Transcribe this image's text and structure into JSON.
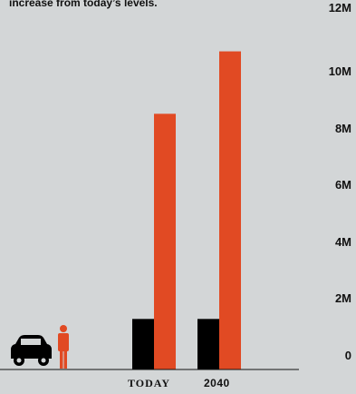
{
  "caption": "increase from today’s levels.",
  "colors": {
    "background": "#d3d6d7",
    "car_series": "#000000",
    "people_series": "#e14a23",
    "icon_car": "#000000",
    "icon_person": "#e14a23"
  },
  "icons": {
    "car": "car-icon",
    "person": "person-icon"
  },
  "chart_data": {
    "type": "bar",
    "title": "",
    "xlabel": "",
    "ylabel": "",
    "categories": [
      "TODAY",
      "2040"
    ],
    "series": [
      {
        "values": [
          1.7,
          1.7
        ],
        "color": "#000000"
      },
      {
        "values": [
          8.6,
          10.7
        ],
        "color": "#e14a23"
      }
    ],
    "ylim": [
      0,
      12
    ],
    "yticks": [
      "0",
      "2M",
      "4M",
      "6M",
      "8M",
      "10M",
      "12M"
    ],
    "grid": false,
    "legend": "none"
  }
}
